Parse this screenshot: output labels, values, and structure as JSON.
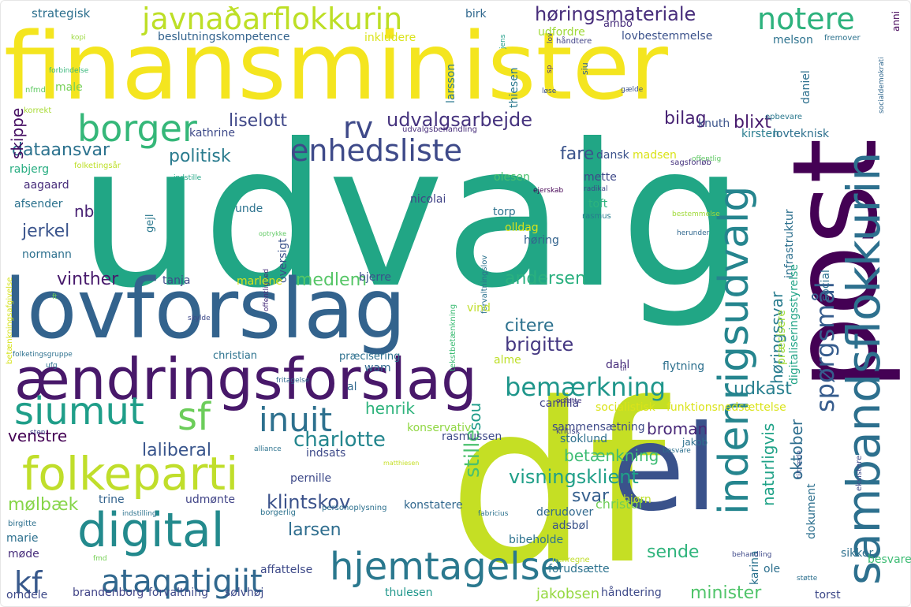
{
  "words": [
    {
      "text": "udvalg",
      "color": "#21a685"
    },
    {
      "text": "finansminister",
      "color": "#f4e51f"
    },
    {
      "text": "lovforslag",
      "color": "#33638d"
    },
    {
      "text": "df",
      "color": "#c5df24"
    },
    {
      "text": "post",
      "color": "#440154"
    },
    {
      "text": "el",
      "color": "#3a528b"
    },
    {
      "text": "ændringsforslag",
      "color": "#48186a"
    },
    {
      "text": "sambandsflokkurin",
      "color": "#2d708e"
    },
    {
      "text": "indenrigsudvalg",
      "color": "#25858e"
    },
    {
      "text": "folkeparti",
      "color": "#c0de2b"
    },
    {
      "text": "digital",
      "color": "#238a8d"
    },
    {
      "text": "hjemtagelse",
      "color": "#2a788e"
    },
    {
      "text": "borger",
      "color": "#35b779"
    },
    {
      "text": "javnaðarflokkurin",
      "color": "#bddf26"
    },
    {
      "text": "ataqatigiit",
      "color": "#31688e"
    },
    {
      "text": "siumut",
      "color": "#1f9e89"
    },
    {
      "text": "sf",
      "color": "#6ccd5a"
    },
    {
      "text": "kf",
      "color": "#38598c"
    },
    {
      "text": "inuit",
      "color": "#2d708e"
    },
    {
      "text": "enhedsliste",
      "color": "#3e4a89"
    },
    {
      "text": "notere",
      "color": "#2db27d"
    },
    {
      "text": "rv",
      "color": "#3e4989"
    },
    {
      "text": "spørgsmål",
      "color": "#365c8d"
    },
    {
      "text": "bemærkning",
      "color": "#1f968b"
    },
    {
      "text": "udvalgsarbejde",
      "color": "#46337e"
    },
    {
      "text": "høringsmateriale",
      "color": "#472d7b"
    },
    {
      "text": "charlotte",
      "color": "#24868e"
    },
    {
      "text": "visningsklient",
      "color": "#1f9f88"
    },
    {
      "text": "klintskov",
      "color": "#3b528b"
    },
    {
      "text": "stille",
      "color": "#4ac16d"
    },
    {
      "text": "brigitte",
      "color": "#453882"
    },
    {
      "text": "politisk",
      "color": "#297b8e"
    },
    {
      "text": "liselott",
      "color": "#3f4788"
    },
    {
      "text": "dataansvar",
      "color": "#2c728e"
    },
    {
      "text": "andersen",
      "color": "#2ab07f"
    },
    {
      "text": "bilag",
      "color": "#482374"
    },
    {
      "text": "blixt",
      "color": "#481c6e"
    },
    {
      "text": "fare",
      "color": "#3a538b"
    },
    {
      "text": "medlem",
      "color": "#56c667"
    },
    {
      "text": "citere",
      "color": "#2c718e"
    },
    {
      "text": "høringssvar",
      "color": "#287c8e"
    },
    {
      "text": "naturligvis",
      "color": "#1fa287"
    },
    {
      "text": "oktober",
      "color": "#2e6e8e"
    },
    {
      "text": "udkast",
      "color": "#277f8e"
    },
    {
      "text": "betænkning",
      "color": "#3dbc74"
    },
    {
      "text": "henrik",
      "color": "#2eb37c"
    },
    {
      "text": "sou",
      "color": "#1e9c89"
    },
    {
      "text": "broman",
      "color": "#482878"
    },
    {
      "text": "minister",
      "color": "#50c46a"
    },
    {
      "text": "jerkel",
      "color": "#3a548c"
    },
    {
      "text": "vinther",
      "color": "#481a6c"
    },
    {
      "text": "laliberal",
      "color": "#39558c"
    },
    {
      "text": "venstre",
      "color": "#440154"
    },
    {
      "text": "skippe",
      "color": "#471063"
    },
    {
      "text": "nb",
      "color": "#482173"
    },
    {
      "text": "mølbæk",
      "color": "#86d549"
    },
    {
      "text": "larsen",
      "color": "#2e6d8e"
    },
    {
      "text": "svar",
      "color": "#355f8d"
    },
    {
      "text": "sende",
      "color": "#2fb47c"
    },
    {
      "text": "jakobsen",
      "color": "#95d840"
    },
    {
      "text": "christof",
      "color": "#6ece58"
    }
  ],
  "small_words": [
    "strategisk",
    "beslutningskompetence",
    "inkludere",
    "birk",
    "kopi",
    "udfordre",
    "lovbestemmelse",
    "håndtere",
    "ambo",
    "melson",
    "fremover",
    "jens",
    "lov",
    "anni",
    "forbindelse",
    "larsson",
    "thiesen",
    "siu",
    "daniel",
    "sp",
    "socialdemokrati",
    "male",
    "nfmd",
    "løse",
    "gælde",
    "korrekt",
    "kathrine",
    "udvalgsbehandling",
    "knuth",
    "opbevare",
    "kirsten",
    "lovteknisk",
    "folketingsår",
    "dansk",
    "madsen",
    "offentlig",
    "indstille",
    "mette",
    "sagsforløb",
    "rabjerg",
    "aagaard",
    "olesen",
    "radikal",
    "nicolai",
    "ejerskab",
    "afsender",
    "gejl",
    "unde",
    "toft",
    "rasmus",
    "bestemmelse",
    "torp",
    "olldag",
    "infrastruktur",
    "normann",
    "oversigt",
    "optrykke",
    "høring",
    "herunder",
    "offentlighed",
    "tanja",
    "marlene",
    "bjerre",
    "digitaliseringsstyrelse",
    "social",
    "forvaltningslov",
    "vind",
    "skylde",
    "betænkningsafgivelse",
    "ft",
    "christian",
    "præcisering",
    "folketingsgruppe",
    "ufg",
    "tekstbetænkning",
    "wam",
    "alme",
    "dahl",
    "flytning",
    "præcisere",
    "til",
    "fritagelse",
    "al",
    "camilla",
    "rasmussen",
    "opfatte",
    "sammensætning",
    "funktionsnedsættelse",
    "socialistisk",
    "sten",
    "konservativ",
    "kritisk",
    "stoklund",
    "alliance",
    "besvare",
    "indsats",
    "jakob",
    "tiltræde",
    "pernille",
    "matthiesen",
    "trine",
    "udmønte",
    "bjørn",
    "eksistere",
    "konstatere",
    "borgerlig",
    "indstilling",
    "personoplysning",
    "derudover",
    "birgitte",
    "fabricius",
    "dokument",
    "marie",
    "adsbøl",
    "bibeholde",
    "sikker",
    "møde",
    "affattelse",
    "forudsætte",
    "karina",
    "fmd",
    "besvarelse",
    "behandling",
    "henregne",
    "brandenborg",
    "forvaltning",
    "sølvhøj",
    "thulesen",
    "ole",
    "torst",
    "omdele",
    "håndtering",
    "støtte"
  ]
}
